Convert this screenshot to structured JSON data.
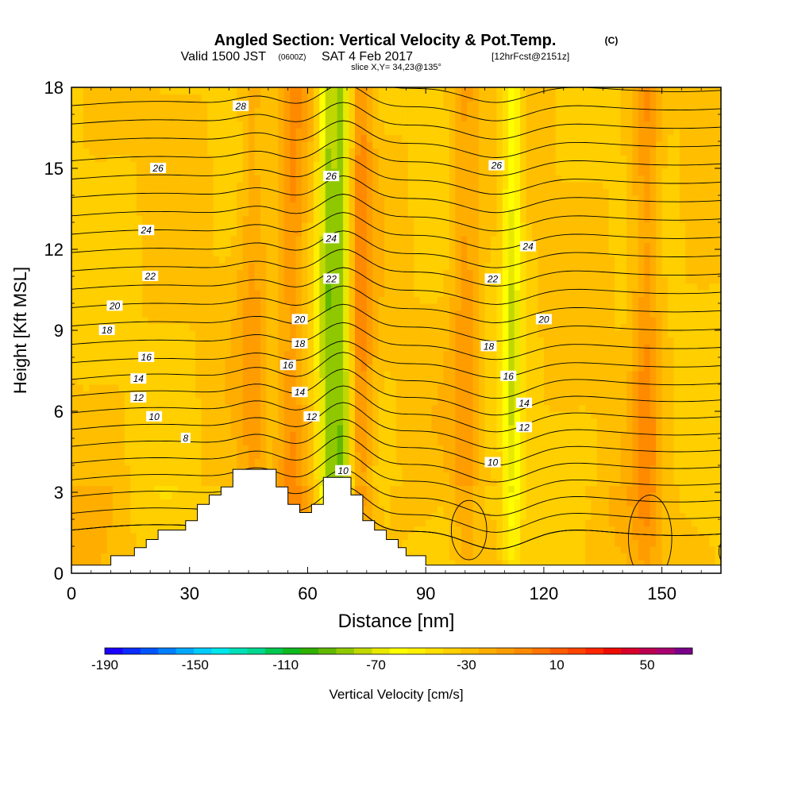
{
  "header": {
    "title": "Angled Section: Vertical Velocity & Pot.Temp.",
    "title_unit": "(C)",
    "valid_prefix": "Valid 1500 JST",
    "valid_zulu": "(0600Z)",
    "valid_date": "SAT 4 Feb 2017",
    "forecast": "[12hrFcst@2151z]",
    "slice": "slice X,Y= 34,23@135°"
  },
  "chart_data": {
    "type": "heatmap",
    "xlabel": "Distance [nm]",
    "ylabel": "Height [Kft MSL]",
    "xlim": [
      0,
      165
    ],
    "ylim": [
      0,
      18
    ],
    "x_ticks": [
      0,
      30,
      60,
      90,
      120,
      150
    ],
    "y_ticks": [
      0,
      3,
      6,
      9,
      12,
      15,
      18
    ],
    "colorbar": {
      "label": "Vertical Velocity [cm/s]",
      "tick_labels": [
        "-190",
        "-150",
        "-110",
        "-70",
        "-30",
        "10",
        "50"
      ],
      "tick_values": [
        -190,
        -150,
        -110,
        -70,
        -30,
        10,
        50
      ],
      "bin_width": 10,
      "range": [
        -190,
        70
      ],
      "colors": [
        "#1a00ff",
        "#0a2cff",
        "#0055ff",
        "#0080ff",
        "#00a8ff",
        "#00ccff",
        "#00e6ea",
        "#00e0b8",
        "#00d890",
        "#00c850",
        "#10b820",
        "#30b000",
        "#60b800",
        "#90c800",
        "#c0d800",
        "#e8e800",
        "#ffff00",
        "#fff000",
        "#ffdf00",
        "#ffcf00",
        "#ffbf00",
        "#ffae00",
        "#ff9d00",
        "#ff8a00",
        "#ff7400",
        "#ff5c00",
        "#ff4400",
        "#ff2600",
        "#ee0c00",
        "#d8002a",
        "#bc0050",
        "#a80070",
        "#7a008a"
      ]
    },
    "theta_contours": {
      "interval": 1,
      "labeled_values": [
        8,
        10,
        12,
        14,
        16,
        18,
        20,
        22,
        24,
        26,
        28
      ]
    },
    "contour_labels": [
      {
        "text": "28",
        "x": 43,
        "y": 17.3
      },
      {
        "text": "26",
        "x": 22,
        "y": 15.0
      },
      {
        "text": "26",
        "x": 66,
        "y": 14.7
      },
      {
        "text": "26",
        "x": 108,
        "y": 15.1
      },
      {
        "text": "24",
        "x": 19,
        "y": 12.7
      },
      {
        "text": "24",
        "x": 66,
        "y": 12.4
      },
      {
        "text": "24",
        "x": 116,
        "y": 12.1
      },
      {
        "text": "22",
        "x": 20,
        "y": 11.0
      },
      {
        "text": "22",
        "x": 66,
        "y": 10.9
      },
      {
        "text": "22",
        "x": 107,
        "y": 10.9
      },
      {
        "text": "20",
        "x": 11,
        "y": 9.9
      },
      {
        "text": "20",
        "x": 58,
        "y": 9.4
      },
      {
        "text": "20",
        "x": 120,
        "y": 9.4
      },
      {
        "text": "18",
        "x": 9,
        "y": 9.0
      },
      {
        "text": "18",
        "x": 58,
        "y": 8.5
      },
      {
        "text": "18",
        "x": 106,
        "y": 8.4
      },
      {
        "text": "16",
        "x": 19,
        "y": 8.0
      },
      {
        "text": "16",
        "x": 55,
        "y": 7.7
      },
      {
        "text": "16",
        "x": 111,
        "y": 7.3
      },
      {
        "text": "14",
        "x": 17,
        "y": 7.2
      },
      {
        "text": "14",
        "x": 58,
        "y": 6.7
      },
      {
        "text": "14",
        "x": 115,
        "y": 6.3
      },
      {
        "text": "12",
        "x": 17,
        "y": 6.5
      },
      {
        "text": "12",
        "x": 61,
        "y": 5.8
      },
      {
        "text": "12",
        "x": 115,
        "y": 5.4
      },
      {
        "text": "10",
        "x": 21,
        "y": 5.8
      },
      {
        "text": "10",
        "x": 69,
        "y": 3.8
      },
      {
        "text": "10",
        "x": 107,
        "y": 4.1
      },
      {
        "text": "8",
        "x": 29,
        "y": 5.0
      }
    ],
    "terrain": [
      [
        0,
        0.3
      ],
      [
        10,
        0.3
      ],
      [
        10,
        0.65
      ],
      [
        16,
        0.65
      ],
      [
        16,
        0.95
      ],
      [
        19,
        0.95
      ],
      [
        19,
        1.25
      ],
      [
        22,
        1.25
      ],
      [
        22,
        1.6
      ],
      [
        29,
        1.6
      ],
      [
        29,
        1.95
      ],
      [
        32,
        1.95
      ],
      [
        32,
        2.55
      ],
      [
        35,
        2.55
      ],
      [
        35,
        2.9
      ],
      [
        38,
        2.9
      ],
      [
        38,
        3.2
      ],
      [
        41,
        3.2
      ],
      [
        41,
        3.85
      ],
      [
        52,
        3.85
      ],
      [
        52,
        3.2
      ],
      [
        55,
        3.2
      ],
      [
        55,
        2.55
      ],
      [
        58,
        2.55
      ],
      [
        58,
        2.25
      ],
      [
        61,
        2.25
      ],
      [
        61,
        2.55
      ],
      [
        64,
        2.55
      ],
      [
        64,
        3.55
      ],
      [
        71,
        3.55
      ],
      [
        71,
        2.9
      ],
      [
        74,
        2.9
      ],
      [
        74,
        1.95
      ],
      [
        77,
        1.95
      ],
      [
        77,
        1.6
      ],
      [
        80,
        1.6
      ],
      [
        80,
        1.25
      ],
      [
        83,
        1.25
      ],
      [
        83,
        0.95
      ],
      [
        85,
        0.95
      ],
      [
        85,
        0.65
      ],
      [
        90,
        0.65
      ],
      [
        90,
        0.3
      ],
      [
        165,
        0.3
      ]
    ],
    "velocity_columns": [
      {
        "x": 46,
        "label": "updraft",
        "value": 30
      },
      {
        "x": 56,
        "label": "updraft",
        "value": 40
      },
      {
        "x": 65,
        "label": "downdraft",
        "value": -50
      },
      {
        "x": 69,
        "label": "downdraft",
        "value": -60
      },
      {
        "x": 73,
        "label": "updraft",
        "value": 45
      },
      {
        "x": 100,
        "label": "updraft",
        "value": 35
      },
      {
        "x": 112,
        "label": "downdraft",
        "value": -35
      },
      {
        "x": 146,
        "label": "updraft",
        "value": 40
      }
    ]
  }
}
